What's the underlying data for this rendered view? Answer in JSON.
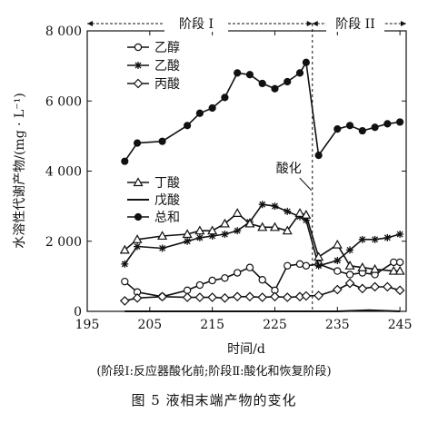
{
  "chart_data": {
    "type": "line",
    "xlabel": "时间/d",
    "ylabel": "水溶性代谢产物/(mg · L⁻¹)",
    "xlim": [
      195,
      246
    ],
    "ylim": [
      0,
      8000
    ],
    "x_ticks": [
      195,
      205,
      215,
      225,
      235,
      245
    ],
    "y_ticks": [
      0,
      2000,
      4000,
      6000,
      8000
    ],
    "y_tick_labels": [
      "0",
      "2 000",
      "4 000",
      "6 000",
      "8 000"
    ],
    "grid": false,
    "phase_boundary_x": 231,
    "phases": [
      {
        "label": "阶段 I",
        "x_range": [
          201,
          231
        ]
      },
      {
        "label": "阶段 II",
        "x_range": [
          231,
          246
        ]
      }
    ],
    "annotation": {
      "text": "酸化",
      "x": 231,
      "y": 3450
    },
    "series": [
      {
        "name": "乙醇",
        "marker": "circle-open",
        "x": [
          201,
          203,
          207,
          211,
          213,
          215,
          217,
          219,
          221,
          223,
          225,
          227,
          229,
          230,
          232,
          235,
          237,
          239,
          241,
          244,
          245
        ],
        "y": [
          850,
          550,
          420,
          600,
          750,
          880,
          950,
          1100,
          1250,
          900,
          600,
          1300,
          1350,
          1300,
          1350,
          1150,
          1050,
          1100,
          1050,
          1400,
          1400
        ]
      },
      {
        "name": "乙酸",
        "marker": "star",
        "x": [
          201,
          203,
          207,
          211,
          213,
          215,
          217,
          219,
          221,
          223,
          225,
          227,
          229,
          230,
          232,
          235,
          237,
          239,
          241,
          243,
          245
        ],
        "y": [
          1350,
          1850,
          1800,
          2000,
          2100,
          2150,
          2200,
          2300,
          2550,
          3050,
          3000,
          2850,
          2700,
          2600,
          1300,
          1450,
          1750,
          2050,
          2050,
          2100,
          2200
        ]
      },
      {
        "name": "丙酸",
        "marker": "diamond-open",
        "x": [
          201,
          203,
          207,
          211,
          213,
          215,
          217,
          219,
          221,
          223,
          225,
          227,
          229,
          230,
          232,
          235,
          237,
          239,
          241,
          243,
          245
        ],
        "y": [
          300,
          380,
          420,
          400,
          400,
          400,
          380,
          420,
          420,
          400,
          420,
          400,
          420,
          440,
          450,
          620,
          800,
          650,
          700,
          700,
          600
        ]
      },
      {
        "name": "丁酸",
        "marker": "triangle-open",
        "x": [
          201,
          203,
          207,
          211,
          213,
          215,
          217,
          219,
          221,
          223,
          225,
          227,
          229,
          230,
          232,
          235,
          237,
          239,
          241,
          244,
          245
        ],
        "y": [
          1750,
          2050,
          2150,
          2200,
          2300,
          2300,
          2500,
          2800,
          2500,
          2400,
          2400,
          2300,
          2800,
          2750,
          1550,
          1900,
          1300,
          1250,
          1200,
          1150,
          1150
        ]
      },
      {
        "name": "戊酸",
        "marker": "none",
        "x": [
          201,
          205,
          210,
          215,
          220,
          225,
          230,
          235,
          240,
          245
        ],
        "y": [
          0,
          0,
          0,
          0,
          0,
          0,
          0,
          0,
          30,
          0
        ]
      },
      {
        "name": "总和",
        "marker": "circle-filled",
        "x": [
          201,
          203,
          207,
          211,
          213,
          215,
          217,
          219,
          221,
          223,
          225,
          227,
          229,
          230,
          232,
          235,
          237,
          239,
          241,
          243,
          245
        ],
        "y": [
          4280,
          4800,
          4850,
          5300,
          5650,
          5800,
          6100,
          6800,
          6750,
          6500,
          6350,
          6550,
          6800,
          7100,
          4450,
          5200,
          5300,
          5150,
          5250,
          5350,
          5400
        ]
      }
    ]
  },
  "note": "(阶段Ⅰ:反应器酸化前;阶段Ⅱ:酸化和恢复阶段)",
  "caption": "图 5    液相末端产物的变化"
}
